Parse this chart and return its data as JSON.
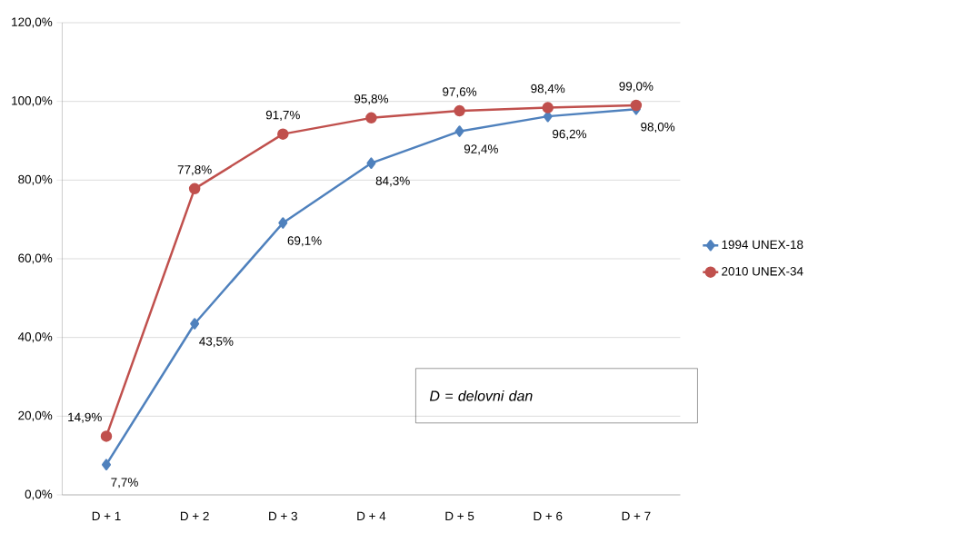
{
  "chart_data": {
    "type": "line",
    "categories": [
      "D + 1",
      "D + 2",
      "D + 3",
      "D + 4",
      "D + 5",
      "D + 6",
      "D + 7"
    ],
    "series": [
      {
        "name": "1994 UNEX-18",
        "color": "#4f81bd",
        "marker": "diamond",
        "values": [
          7.7,
          43.5,
          69.1,
          84.3,
          92.4,
          96.2,
          98.0
        ],
        "value_labels": [
          "7,7%",
          "43,5%",
          "69,1%",
          "84,3%",
          "92,4%",
          "96,2%",
          "98,0%"
        ]
      },
      {
        "name": "2010 UNEX-34",
        "color": "#c0504d",
        "marker": "circle",
        "values": [
          14.9,
          77.8,
          91.7,
          95.8,
          97.6,
          98.4,
          99.0
        ],
        "value_labels": [
          "14,9%",
          "77,8%",
          "91,7%",
          "95,8%",
          "97,6%",
          "98,4%",
          "99,0%"
        ]
      }
    ],
    "ylim": [
      0,
      120
    ],
    "yticks": [
      {
        "value": 0,
        "label": "0,0%"
      },
      {
        "value": 20,
        "label": "20,0%"
      },
      {
        "value": 40,
        "label": "40,0%"
      },
      {
        "value": 60,
        "label": "60,0%"
      },
      {
        "value": 80,
        "label": "80,0%"
      },
      {
        "value": 100,
        "label": "100,0%"
      },
      {
        "value": 120,
        "label": "120,0%"
      }
    ],
    "grid": "y",
    "legend": "right",
    "line_style": "solid",
    "annotations": [
      "D = delovni dan"
    ]
  }
}
